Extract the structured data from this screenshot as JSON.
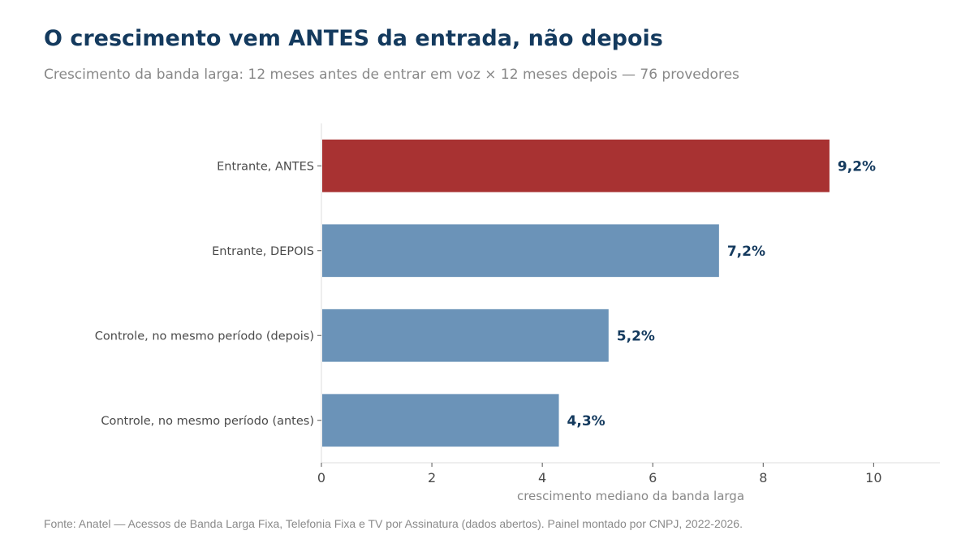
{
  "title": "O crescimento vem ANTES da entrada, não depois",
  "subtitle": "Crescimento da banda larga: 12 meses antes de entrar em voz × 12 meses depois — 76 provedores",
  "source": "Fonte: Anatel — Acessos de Banda Larga Fixa, Telefonia Fixa e TV por Assinatura (dados abertos). Painel montado por CNPJ, 2022-2026.",
  "chart_data": {
    "type": "bar",
    "orientation": "horizontal",
    "categories": [
      "Entrante, ANTES",
      "Entrante, DEPOIS",
      "Controle, no mesmo período (depois)",
      "Controle, no mesmo período (antes)"
    ],
    "values": [
      9.2,
      7.2,
      5.2,
      4.3
    ],
    "value_labels": [
      "9,2%",
      "7,2%",
      "5,2%",
      "4,3%"
    ],
    "colors": [
      "#a83232",
      "#6b93b8",
      "#6b93b8",
      "#6b93b8"
    ],
    "xlabel": "crescimento mediano da banda larga",
    "xlim": [
      0,
      11.2
    ],
    "xticks": [
      0,
      2,
      4,
      6,
      8,
      10
    ],
    "grid": false
  }
}
